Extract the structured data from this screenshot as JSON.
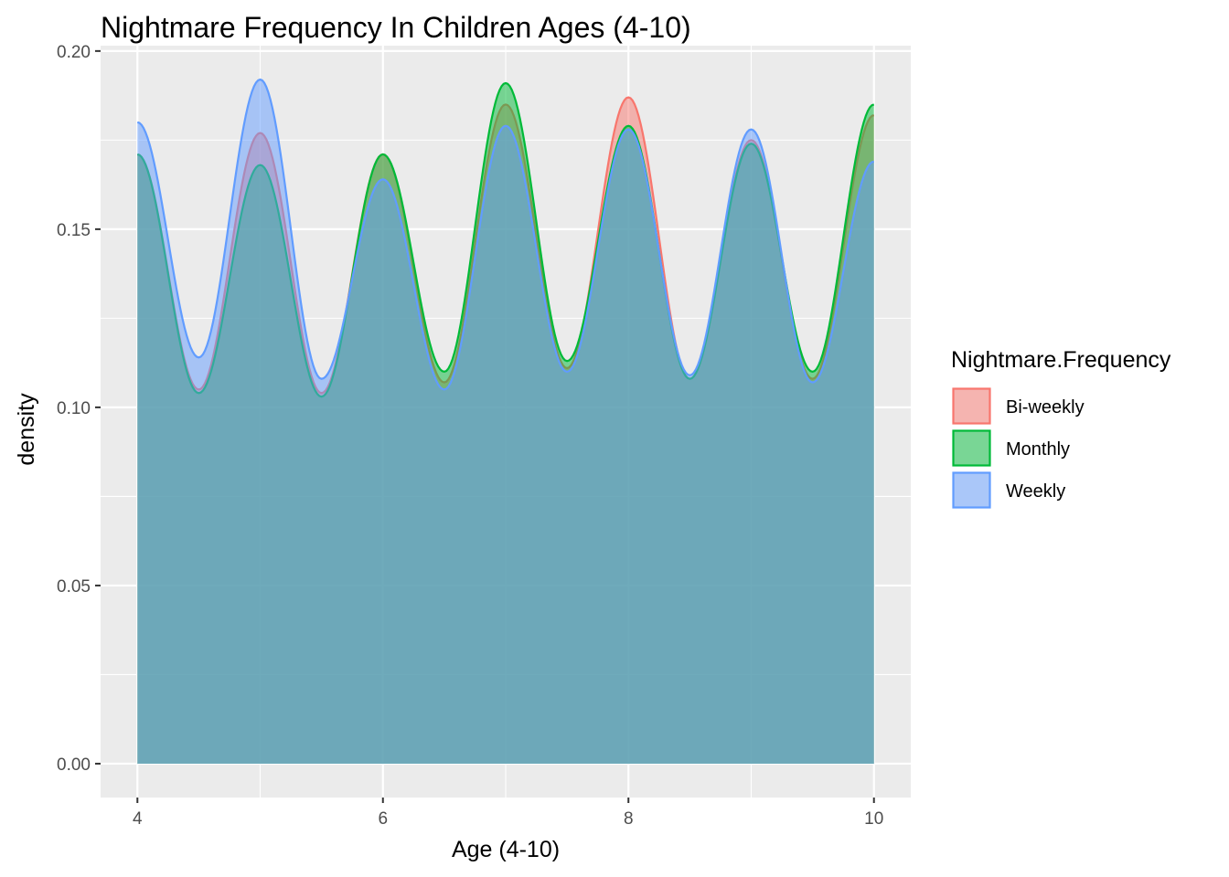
{
  "chart_data": {
    "type": "area",
    "title": "Nightmare Frequency In Children Ages (4-10)",
    "xlabel": "Age (4-10)",
    "ylabel": "density",
    "xlim": [
      3.7,
      10.3
    ],
    "ylim": [
      -0.0095,
      0.2015
    ],
    "x_ticks": [
      4,
      6,
      8,
      10
    ],
    "x_tick_labels": [
      "4",
      "6",
      "8",
      "10"
    ],
    "y_ticks": [
      0.0,
      0.05,
      0.1,
      0.15,
      0.2
    ],
    "y_tick_labels": [
      "0.00",
      "0.05",
      "0.10",
      "0.15",
      "0.20"
    ],
    "grid": true,
    "legend": {
      "title": "Nightmare.Frequency",
      "position": "right"
    },
    "series": [
      {
        "name": "Bi-weekly",
        "fill": "#F8766D",
        "stroke": "#F8766D",
        "x": [
          4.0,
          4.5,
          5.0,
          5.5,
          6.0,
          6.5,
          7.0,
          7.5,
          8.0,
          8.5,
          9.0,
          9.5,
          10.0
        ],
        "y": [
          0.171,
          0.105,
          0.177,
          0.104,
          0.171,
          0.107,
          0.185,
          0.111,
          0.187,
          0.108,
          0.175,
          0.108,
          0.182
        ]
      },
      {
        "name": "Monthly",
        "fill": "#00BA38",
        "stroke": "#00BA38",
        "x": [
          4.0,
          4.5,
          5.0,
          5.5,
          6.0,
          6.5,
          7.0,
          7.5,
          8.0,
          8.5,
          9.0,
          9.5,
          10.0
        ],
        "y": [
          0.171,
          0.104,
          0.168,
          0.103,
          0.171,
          0.11,
          0.191,
          0.113,
          0.179,
          0.108,
          0.174,
          0.11,
          0.185
        ]
      },
      {
        "name": "Weekly",
        "fill": "#619CFF",
        "stroke": "#619CFF",
        "x": [
          4.0,
          4.5,
          5.0,
          5.5,
          6.0,
          6.5,
          7.0,
          7.5,
          8.0,
          8.5,
          9.0,
          9.5,
          10.0
        ],
        "y": [
          0.18,
          0.114,
          0.192,
          0.108,
          0.164,
          0.105,
          0.179,
          0.11,
          0.178,
          0.109,
          0.178,
          0.107,
          0.169
        ]
      }
    ]
  },
  "colors": {
    "panel_background": "#EBEBEB",
    "grid_line": "#FFFFFF",
    "fill_alpha": 0.5
  }
}
